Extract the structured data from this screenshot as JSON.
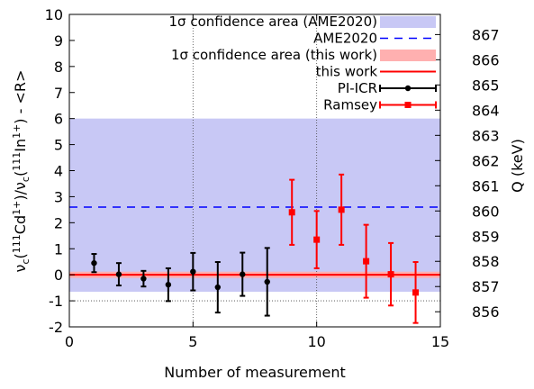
{
  "chart_data": {
    "type": "scatter",
    "xlabel": "Number of measurement",
    "ylabel": "νc(111Cd1+)/νc(111In1+) - <R>",
    "y2label": "Q (keV)",
    "xlim": [
      0,
      15
    ],
    "ylim": [
      -2,
      10
    ],
    "y2lim": [
      855.4,
      867.8
    ],
    "x_ticks": [
      "0",
      "5",
      "10",
      "15"
    ],
    "y_ticks": [
      "-2",
      "-1",
      "0",
      "1",
      "2",
      "3",
      "4",
      "5",
      "6",
      "7",
      "8",
      "9",
      "10"
    ],
    "y2_ticks": [
      "856",
      "857",
      "858",
      "859",
      "860",
      "861",
      "862",
      "863",
      "864",
      "865",
      "866",
      "867"
    ],
    "grid": "dotted, at x=5 and x=10 and y=-1",
    "legend_position": "top-right",
    "ame_band": {
      "low": -0.65,
      "high": 6.0,
      "center": 2.6,
      "color": "#c8c8f5",
      "line_color": "#0000ff"
    },
    "this_work_band": {
      "low": -0.12,
      "high": 0.12,
      "center": 0.0,
      "color": "#ffb0b0",
      "line_color": "#ff0000"
    },
    "series": [
      {
        "name": "PI-ICR",
        "color": "#000000",
        "marker": "circle",
        "points": [
          {
            "x": 1,
            "y": 0.45,
            "err": 0.35
          },
          {
            "x": 2,
            "y": 0.02,
            "err": 0.43
          },
          {
            "x": 3,
            "y": -0.15,
            "err": 0.3
          },
          {
            "x": 4,
            "y": -0.38,
            "err": 0.63
          },
          {
            "x": 5,
            "y": 0.12,
            "err": 0.72
          },
          {
            "x": 6,
            "y": -0.48,
            "err": 0.97
          },
          {
            "x": 7,
            "y": 0.02,
            "err": 0.83
          },
          {
            "x": 8,
            "y": -0.27,
            "err": 1.3
          }
        ]
      },
      {
        "name": "Ramsey",
        "color": "#ff0000",
        "marker": "square",
        "points": [
          {
            "x": 9,
            "y": 2.4,
            "err": 1.25
          },
          {
            "x": 10,
            "y": 1.35,
            "err": 1.1
          },
          {
            "x": 11,
            "y": 2.5,
            "err": 1.35
          },
          {
            "x": 12,
            "y": 0.52,
            "err": 1.4
          },
          {
            "x": 13,
            "y": 0.02,
            "err": 1.2
          },
          {
            "x": 14,
            "y": -0.68,
            "err": 1.17
          }
        ]
      }
    ],
    "legend": [
      {
        "label": "1σ confidence area (AME2020)",
        "kind": "box",
        "color": "#c8c8f5"
      },
      {
        "label": "AME2020",
        "kind": "dash",
        "color": "#0000ff"
      },
      {
        "label": "1σ confidence area (this work)",
        "kind": "box",
        "color": "#ffb0b0"
      },
      {
        "label": "this work",
        "kind": "line",
        "color": "#ff0000"
      },
      {
        "label": "PI-ICR",
        "kind": "errpoint",
        "marker": "circle",
        "color": "#000000"
      },
      {
        "label": "Ramsey",
        "kind": "errpoint",
        "marker": "square",
        "color": "#ff0000"
      }
    ]
  }
}
